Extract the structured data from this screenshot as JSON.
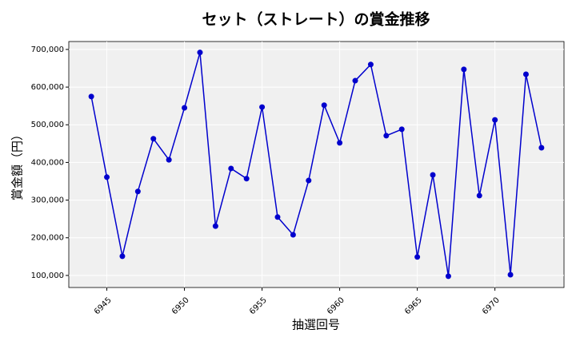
{
  "chart_data": {
    "type": "line",
    "title": "セット（ストレート）の賞金推移",
    "xlabel": "抽選回号",
    "ylabel": "賞金額（円）",
    "x": [
      6944,
      6945,
      6946,
      6947,
      6948,
      6949,
      6950,
      6951,
      6952,
      6953,
      6954,
      6955,
      6956,
      6957,
      6958,
      6959,
      6960,
      6961,
      6962,
      6963,
      6964,
      6965,
      6966,
      6967,
      6968,
      6969,
      6970,
      6971,
      6972,
      6973
    ],
    "series": [
      {
        "color": "#0000cd",
        "values": [
          575000,
          361000,
          151000,
          323000,
          463000,
          407000,
          545000,
          692000,
          231000,
          384000,
          357000,
          547000,
          255000,
          208000,
          352000,
          552000,
          452000,
          617000,
          660000,
          471000,
          488000,
          149000,
          367000,
          98000,
          647000,
          312000,
          513000,
          102000,
          634000,
          439000
        ]
      }
    ],
    "xlim": [
      6942.55,
      6974.45
    ],
    "ylim": [
      68000,
      721000
    ],
    "xticks": [
      6945,
      6950,
      6955,
      6960,
      6965,
      6970
    ],
    "yticks": [
      {
        "value": 100000,
        "label": "100,000"
      },
      {
        "value": 200000,
        "label": "200,000"
      },
      {
        "value": 300000,
        "label": "300,000"
      },
      {
        "value": 400000,
        "label": "400,000"
      },
      {
        "value": 500000,
        "label": "500,000"
      },
      {
        "value": 600000,
        "label": "600,000"
      },
      {
        "value": 700000,
        "label": "700,000"
      }
    ],
    "grid": true
  }
}
